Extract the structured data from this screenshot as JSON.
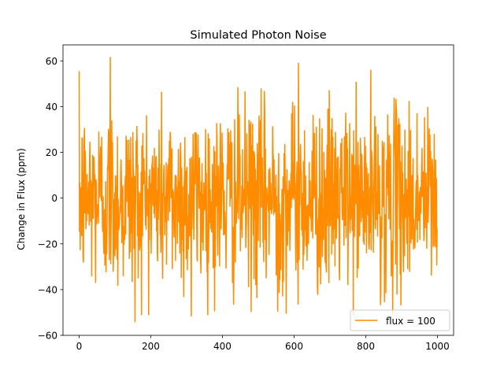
{
  "chart_data": {
    "type": "line",
    "title": "Simulated Photon Noise",
    "xlabel": "",
    "ylabel": "Change in Flux (ppm)",
    "xlim": [
      -45,
      1045
    ],
    "ylim": [
      -60,
      67
    ],
    "xticks": [
      0,
      200,
      400,
      600,
      800,
      1000
    ],
    "yticks": [
      -60,
      -40,
      -20,
      0,
      20,
      40,
      60
    ],
    "xtick_labels": [
      "0",
      "200",
      "400",
      "600",
      "800",
      "1000"
    ],
    "ytick_labels": [
      "−60",
      "−40",
      "−20",
      "0",
      "20",
      "40",
      "60"
    ],
    "grid": false,
    "legend_position": "lower-right",
    "series": [
      {
        "name": "flux = 100",
        "color": "#ff8c00",
        "n_points": 1000,
        "x_start": 0,
        "x_step": 1,
        "noise_std": 20,
        "approx_range": [
          -54,
          62
        ],
        "notable_values": [
          {
            "x": 87,
            "y": 61.5
          },
          {
            "x": 612,
            "y": 59
          },
          {
            "x": 156,
            "y": -54
          },
          {
            "x": 313,
            "y": -51.5
          },
          {
            "x": 554,
            "y": -49.5
          }
        ]
      }
    ]
  }
}
